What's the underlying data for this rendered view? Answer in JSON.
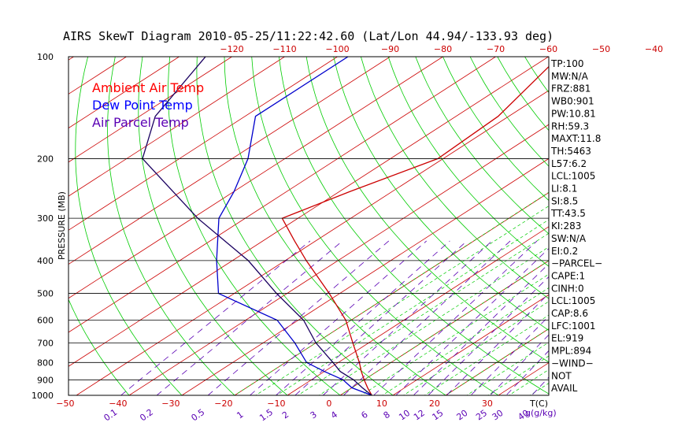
{
  "title": "AIRS SkewT Diagram 2010-05-25/11:22:42.60 (Lat/Lon 44.94/-133.93 deg)",
  "chart_data": {
    "type": "line",
    "ylabel": "PRESSURE (MB)",
    "xlabel": "T(C)",
    "mixing_label": "g(g/kg)",
    "ylim": [
      1000,
      100
    ],
    "xlim": [
      -50,
      40
    ],
    "pressure_ticks": [
      "100",
      "200",
      "300",
      "400",
      "500",
      "600",
      "700",
      "800",
      "900",
      "1000"
    ],
    "pressure_values": [
      100,
      200,
      300,
      400,
      500,
      600,
      700,
      800,
      900,
      1000
    ],
    "bottom_temp_ticks": [
      -50,
      -40,
      -30,
      -20,
      -10,
      0,
      10,
      20,
      30
    ],
    "bottom_temp_labels": [
      "−50",
      "−40",
      "−30",
      "−20",
      "−10",
      "0",
      "10",
      "20",
      "30"
    ],
    "top_temp_ticks": [
      -120,
      -110,
      -100,
      -90,
      -80,
      -70,
      -60,
      -50,
      -40
    ],
    "top_temp_labels": [
      "−120",
      "−110",
      "−100",
      "−90",
      "−80",
      "−70",
      "−60",
      "−50",
      "−40"
    ],
    "mixing_ratio_labels": [
      "0.1",
      "0.2",
      "0.5",
      "1",
      "1.5",
      "2",
      "3",
      "4",
      "6",
      "8",
      "10",
      "12",
      "15",
      "20",
      "25",
      "30",
      "40"
    ],
    "mixing_ratio_values": [
      0.1,
      0.2,
      0.5,
      1,
      1.5,
      2,
      3,
      4,
      6,
      8,
      10,
      12,
      15,
      20,
      25,
      30,
      40
    ],
    "legend": [
      {
        "label": "Ambient Air Temp",
        "color": "#ff0000"
      },
      {
        "label": "Dew Point Temp",
        "color": "#0000ff"
      },
      {
        "label": "Air Parcel Temp",
        "color": "#5a00b4"
      }
    ],
    "series": [
      {
        "name": "Ambient Air Temp",
        "color": "#cc0000",
        "points": [
          [
            1000,
            6
          ],
          [
            950,
            3
          ],
          [
            900,
            0
          ],
          [
            850,
            -3
          ],
          [
            800,
            -6
          ],
          [
            700,
            -13
          ],
          [
            600,
            -21
          ],
          [
            500,
            -32
          ],
          [
            400,
            -46
          ],
          [
            350,
            -54
          ],
          [
            300,
            -63
          ],
          [
            250,
            -58
          ],
          [
            200,
            -51
          ],
          [
            150,
            -52
          ],
          [
            100,
            -58
          ]
        ]
      },
      {
        "name": "Dew Point Temp",
        "color": "#0000cc",
        "points": [
          [
            1000,
            6
          ],
          [
            950,
            0
          ],
          [
            900,
            -4
          ],
          [
            850,
            -10
          ],
          [
            800,
            -16
          ],
          [
            700,
            -24
          ],
          [
            600,
            -34
          ],
          [
            500,
            -53
          ],
          [
            400,
            -63
          ],
          [
            300,
            -75
          ],
          [
            250,
            -80
          ],
          [
            200,
            -87
          ],
          [
            150,
            -98
          ],
          [
            100,
            -98
          ]
        ]
      },
      {
        "name": "Air Parcel Temp",
        "color": "#1a0060",
        "points": [
          [
            1000,
            6
          ],
          [
            950,
            2
          ],
          [
            900,
            -2
          ],
          [
            850,
            -7
          ],
          [
            800,
            -11
          ],
          [
            700,
            -20
          ],
          [
            600,
            -29
          ],
          [
            500,
            -42
          ],
          [
            400,
            -57
          ],
          [
            300,
            -79
          ],
          [
            200,
            -107
          ],
          [
            150,
            -117
          ],
          [
            100,
            -125
          ]
        ]
      }
    ],
    "indices": [
      "TP:100",
      "MW:N/A",
      "FRZ:881",
      "WB0:901",
      "PW:10.81",
      "RH:59.3",
      "MAXT:11.8",
      "TH:5463",
      "L57:6.2",
      "LCL:1005",
      "LI:8.1",
      "SI:8.5",
      "TT:43.5",
      "KI:283",
      "SW:N/A",
      "EI:0.2",
      "−PARCEL−",
      "CAPE:1",
      "CINH:0",
      "LCL:1005",
      "CAP:8.6",
      "LFC:1001",
      "EL:919",
      "MPL:894",
      "−WIND−",
      "NOT",
      "AVAIL"
    ],
    "colors": {
      "isotherm": "#cc0000",
      "dry_adiabat": "#00cc00",
      "moist_adiabat": "#00cc00",
      "mixing_ratio": "#5a00b4",
      "isobar": "#000000"
    }
  }
}
